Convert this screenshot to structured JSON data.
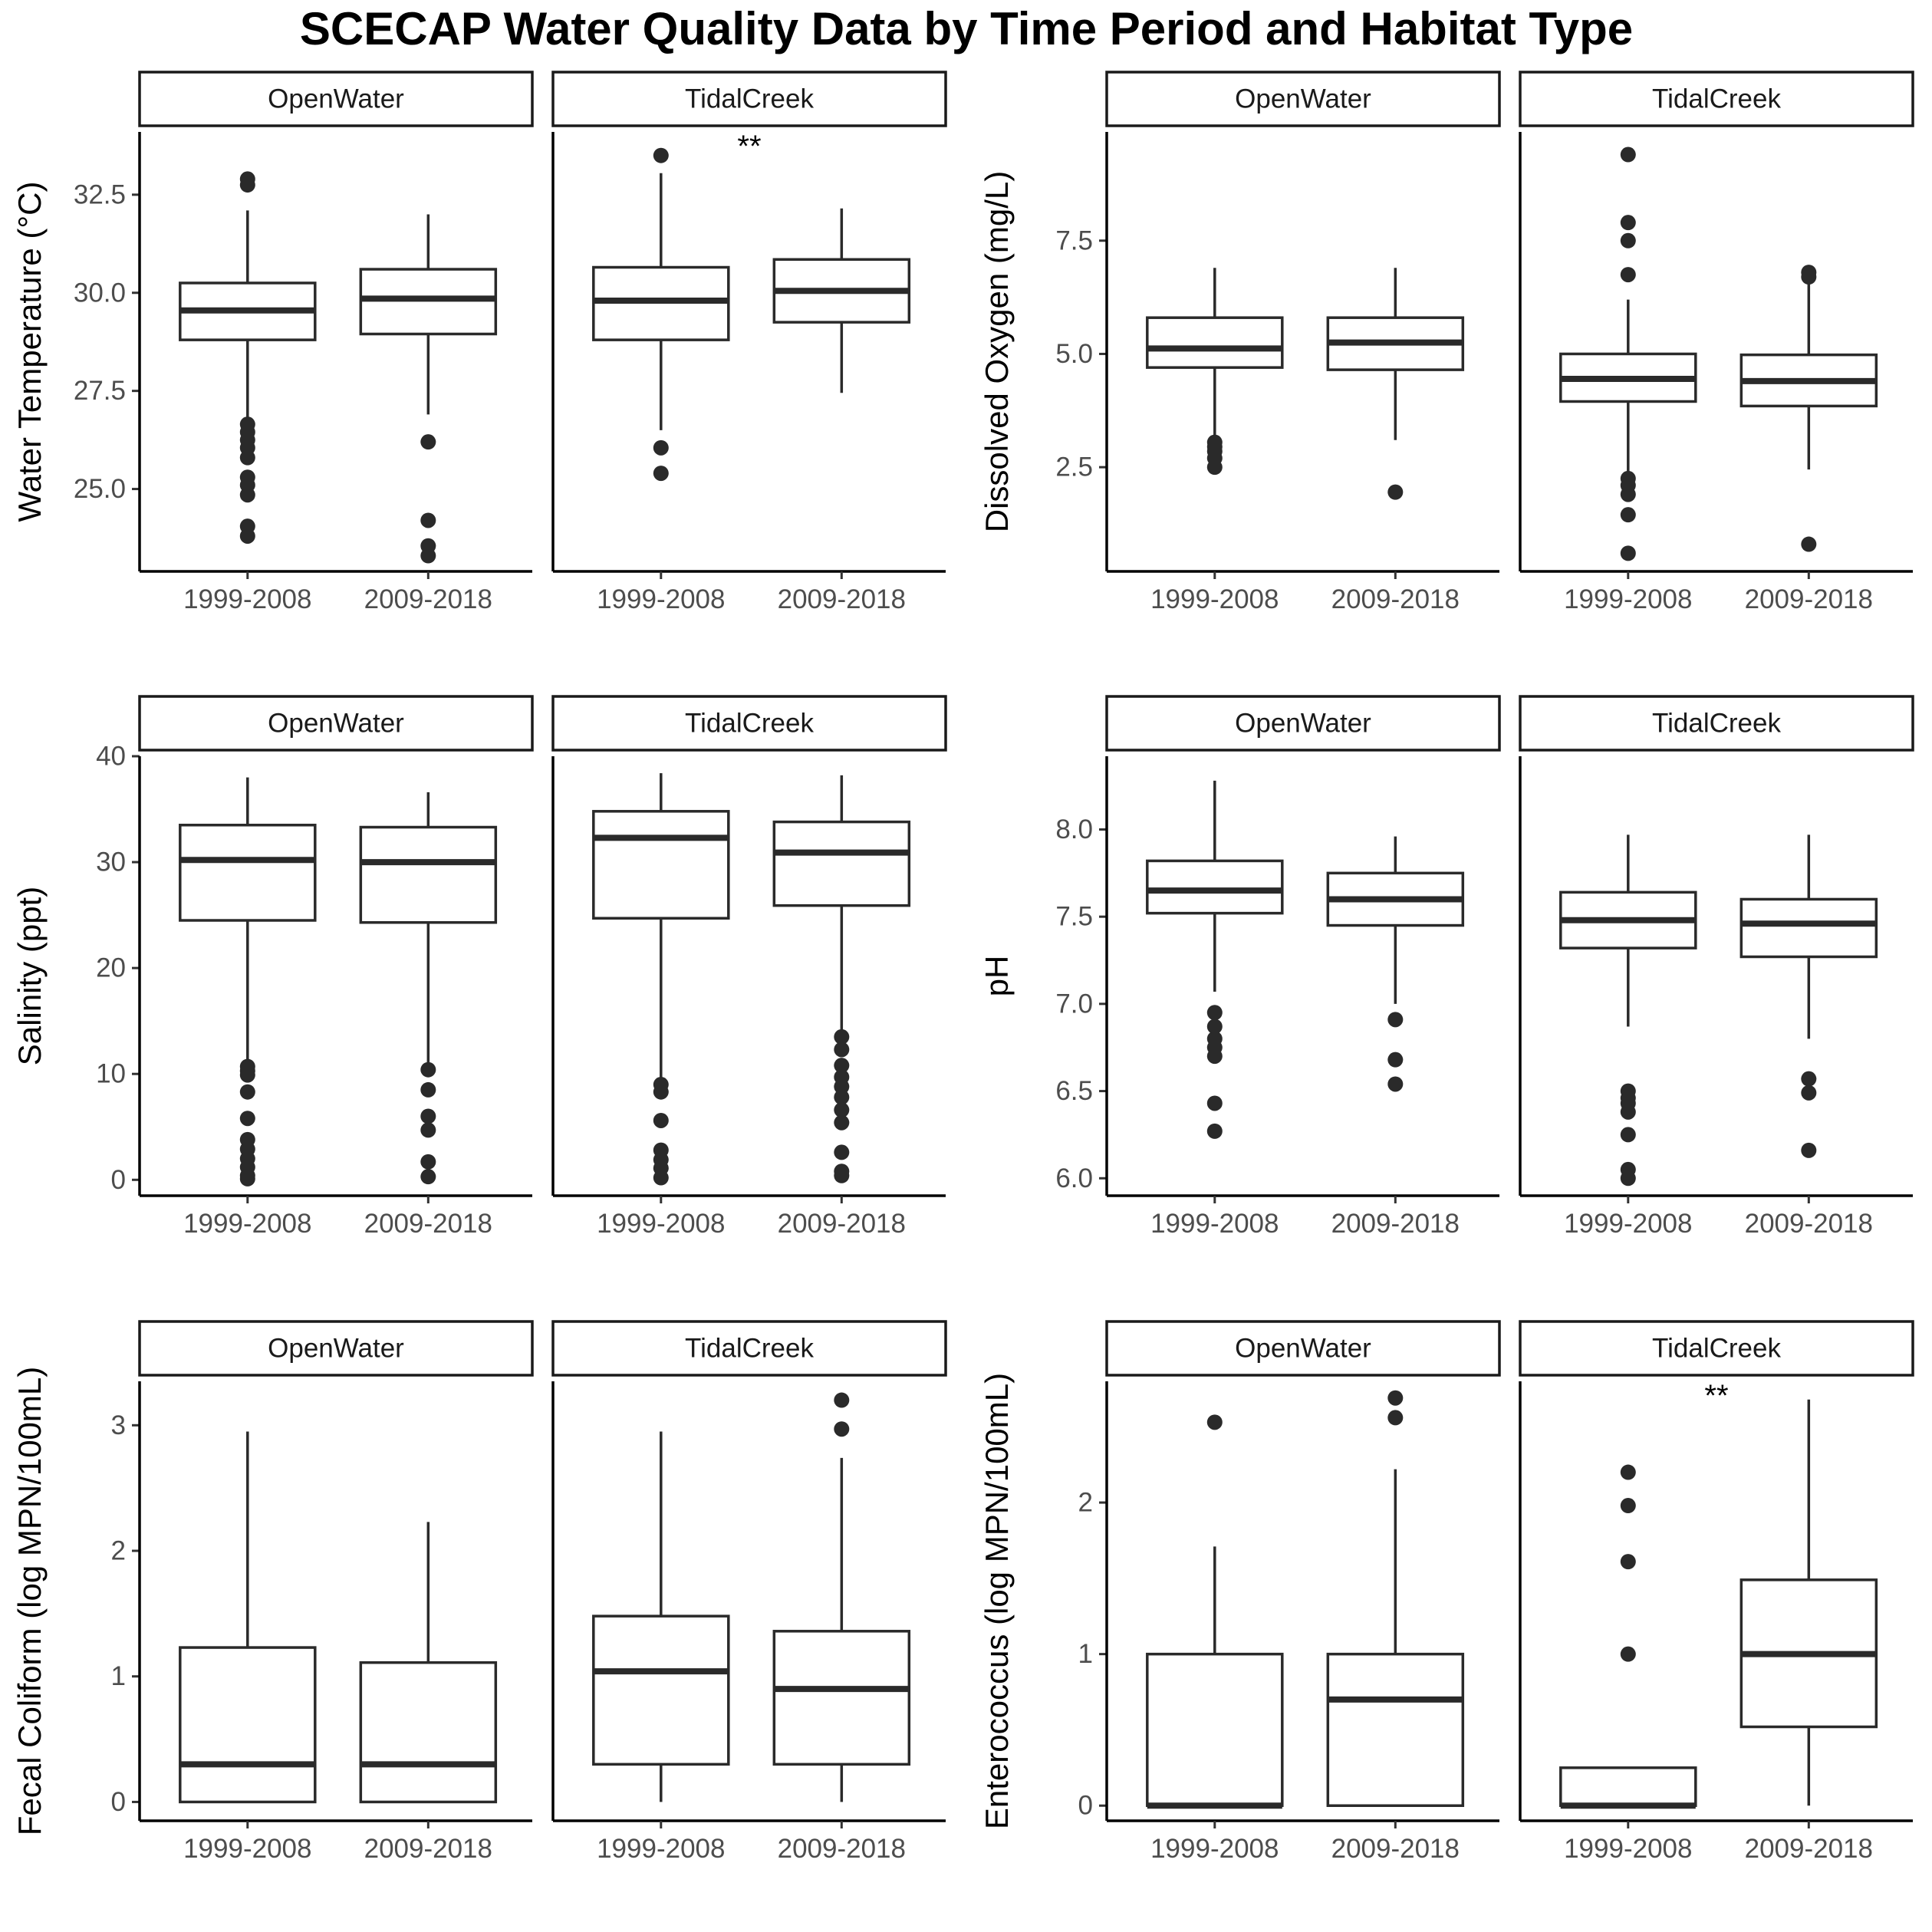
{
  "title": "SCECAP Water Quality Data by Time Period and Habitat Type",
  "chart_data": [
    {
      "type": "boxplot",
      "ylabel": "Water Temperature (°C)",
      "ylim": [
        22.9,
        34.1
      ],
      "yticks": [
        25.0,
        27.5,
        30.0,
        32.5
      ],
      "ytick_labels": [
        "25.0",
        "27.5",
        "30.0",
        "32.5"
      ],
      "categories": [
        "1999-2008",
        "2009-2018"
      ],
      "facets": [
        {
          "name": "OpenWater",
          "annotation": "",
          "boxes": [
            {
              "category": "1999-2008",
              "lower_whisker": 26.8,
              "q1": 28.8,
              "median": 29.55,
              "q3": 30.25,
              "upper_whisker": 32.1,
              "outliers": [
                32.9,
                32.75,
                26.65,
                26.45,
                26.25,
                26.05,
                25.8,
                25.3,
                25.1,
                24.85,
                24.05,
                23.8
              ]
            },
            {
              "category": "2009-2018",
              "lower_whisker": 26.9,
              "q1": 28.95,
              "median": 29.85,
              "q3": 30.6,
              "upper_whisker": 32.0,
              "outliers": [
                26.2,
                24.2,
                23.55,
                23.3
              ]
            }
          ]
        },
        {
          "name": "TidalCreek",
          "annotation": "**",
          "boxes": [
            {
              "category": "1999-2008",
              "lower_whisker": 26.5,
              "q1": 28.8,
              "median": 29.8,
              "q3": 30.65,
              "upper_whisker": 33.05,
              "outliers": [
                33.5,
                26.05,
                25.4
              ]
            },
            {
              "category": "2009-2018",
              "lower_whisker": 27.45,
              "q1": 29.25,
              "median": 30.05,
              "q3": 30.85,
              "upper_whisker": 32.15,
              "outliers": []
            }
          ]
        }
      ]
    },
    {
      "type": "boxplot",
      "ylabel": "Dissolved Oxygen (mg/L)",
      "ylim": [
        0.2,
        9.9
      ],
      "yticks": [
        2.5,
        5.0,
        7.5
      ],
      "ytick_labels": [
        "2.5",
        "5.0",
        "7.5"
      ],
      "categories": [
        "1999-2008",
        "2009-2018"
      ],
      "facets": [
        {
          "name": "OpenWater",
          "annotation": "",
          "boxes": [
            {
              "category": "1999-2008",
              "lower_whisker": 3.2,
              "q1": 4.7,
              "median": 5.12,
              "q3": 5.8,
              "upper_whisker": 6.9,
              "outliers": [
                3.05,
                2.95,
                2.85,
                2.7,
                2.5
              ]
            },
            {
              "category": "2009-2018",
              "lower_whisker": 3.1,
              "q1": 4.65,
              "median": 5.25,
              "q3": 5.8,
              "upper_whisker": 6.9,
              "outliers": [
                1.95
              ]
            }
          ]
        },
        {
          "name": "TidalCreek",
          "annotation": "",
          "boxes": [
            {
              "category": "1999-2008",
              "lower_whisker": 2.4,
              "q1": 3.95,
              "median": 4.45,
              "q3": 5.0,
              "upper_whisker": 6.2,
              "outliers": [
                9.4,
                7.9,
                7.5,
                6.75,
                2.25,
                2.1,
                1.9,
                1.45,
                0.6
              ]
            },
            {
              "category": "2009-2018",
              "lower_whisker": 2.45,
              "q1": 3.85,
              "median": 4.4,
              "q3": 4.98,
              "upper_whisker": 6.55,
              "outliers": [
                6.8,
                6.7,
                0.8
              ]
            }
          ]
        }
      ]
    },
    {
      "type": "boxplot",
      "ylabel": "Salinity (ppt)",
      "ylim": [
        -1.5,
        40.0
      ],
      "yticks": [
        0,
        10,
        20,
        30,
        40
      ],
      "ytick_labels": [
        "0",
        "10",
        "20",
        "30",
        "40"
      ],
      "categories": [
        "1999-2008",
        "2009-2018"
      ],
      "facets": [
        {
          "name": "OpenWater",
          "annotation": "",
          "boxes": [
            {
              "category": "1999-2008",
              "lower_whisker": 11.0,
              "q1": 24.5,
              "median": 30.2,
              "q3": 33.5,
              "upper_whisker": 38.0,
              "outliers": [
                10.7,
                10.3,
                9.9,
                8.3,
                5.8,
                3.8,
                2.9,
                2.0,
                1.2,
                0.4,
                0.1
              ]
            },
            {
              "category": "2009-2018",
              "lower_whisker": 11.0,
              "q1": 24.3,
              "median": 30.0,
              "q3": 33.3,
              "upper_whisker": 36.6,
              "outliers": [
                10.4,
                8.5,
                6.0,
                4.7,
                1.7,
                0.3
              ]
            }
          ]
        },
        {
          "name": "TidalCreek",
          "annotation": "",
          "boxes": [
            {
              "category": "1999-2008",
              "lower_whisker": 9.2,
              "q1": 24.7,
              "median": 32.3,
              "q3": 34.8,
              "upper_whisker": 38.4,
              "outliers": [
                9.0,
                8.3,
                5.6,
                2.8,
                1.9,
                1.1,
                0.2
              ]
            },
            {
              "category": "2009-2018",
              "lower_whisker": 14.0,
              "q1": 25.9,
              "median": 30.9,
              "q3": 33.8,
              "upper_whisker": 38.2,
              "outliers": [
                13.5,
                12.3,
                10.8,
                9.7,
                8.8,
                7.8,
                6.6,
                5.4,
                2.6,
                0.8,
                0.4
              ]
            }
          ]
        }
      ]
    },
    {
      "type": "boxplot",
      "ylabel": "pH",
      "ylim": [
        5.9,
        8.42
      ],
      "yticks": [
        6.0,
        6.5,
        7.0,
        7.5,
        8.0
      ],
      "ytick_labels": [
        "6.0",
        "6.5",
        "7.0",
        "7.5",
        "8.0"
      ],
      "categories": [
        "1999-2008",
        "2009-2018"
      ],
      "facets": [
        {
          "name": "OpenWater",
          "annotation": "",
          "boxes": [
            {
              "category": "1999-2008",
              "lower_whisker": 7.07,
              "q1": 7.52,
              "median": 7.65,
              "q3": 7.82,
              "upper_whisker": 8.28,
              "outliers": [
                6.95,
                6.87,
                6.8,
                6.75,
                6.7,
                6.43,
                6.27
              ]
            },
            {
              "category": "2009-2018",
              "lower_whisker": 7.0,
              "q1": 7.45,
              "median": 7.6,
              "q3": 7.75,
              "upper_whisker": 7.96,
              "outliers": [
                6.91,
                6.68,
                6.54
              ]
            }
          ]
        },
        {
          "name": "TidalCreek",
          "annotation": "",
          "boxes": [
            {
              "category": "1999-2008",
              "lower_whisker": 6.87,
              "q1": 7.32,
              "median": 7.48,
              "q3": 7.64,
              "upper_whisker": 7.97,
              "outliers": [
                6.5,
                6.46,
                6.43,
                6.38,
                6.25,
                6.05,
                6.0
              ]
            },
            {
              "category": "2009-2018",
              "lower_whisker": 6.8,
              "q1": 7.27,
              "median": 7.46,
              "q3": 7.6,
              "upper_whisker": 7.97,
              "outliers": [
                6.57,
                6.49,
                6.16
              ]
            }
          ]
        }
      ]
    },
    {
      "type": "boxplot",
      "ylabel": "Fecal Coliform (log MPN/100mL)",
      "ylim": [
        -0.15,
        3.35
      ],
      "yticks": [
        0,
        1,
        2,
        3
      ],
      "ytick_labels": [
        "0",
        "1",
        "2",
        "3"
      ],
      "categories": [
        "1999-2008",
        "2009-2018"
      ],
      "facets": [
        {
          "name": "OpenWater",
          "annotation": "",
          "boxes": [
            {
              "category": "1999-2008",
              "lower_whisker": 0.0,
              "q1": 0.0,
              "median": 0.3,
              "q3": 1.23,
              "upper_whisker": 2.95,
              "outliers": []
            },
            {
              "category": "2009-2018",
              "lower_whisker": 0.0,
              "q1": 0.0,
              "median": 0.3,
              "q3": 1.11,
              "upper_whisker": 2.23,
              "outliers": []
            }
          ]
        },
        {
          "name": "TidalCreek",
          "annotation": "",
          "boxes": [
            {
              "category": "1999-2008",
              "lower_whisker": 0.0,
              "q1": 0.3,
              "median": 1.04,
              "q3": 1.48,
              "upper_whisker": 2.95,
              "outliers": []
            },
            {
              "category": "2009-2018",
              "lower_whisker": 0.0,
              "q1": 0.3,
              "median": 0.9,
              "q3": 1.36,
              "upper_whisker": 2.74,
              "outliers": [
                3.2,
                2.97
              ]
            }
          ]
        }
      ]
    },
    {
      "type": "boxplot",
      "ylabel": "Enterococcus (log MPN/100mL)",
      "ylim": [
        -0.1,
        2.8
      ],
      "yticks": [
        0,
        1,
        2
      ],
      "ytick_labels": [
        "0",
        "1",
        "2"
      ],
      "categories": [
        "1999-2008",
        "2009-2018"
      ],
      "facets": [
        {
          "name": "OpenWater",
          "annotation": "",
          "boxes": [
            {
              "category": "1999-2008",
              "lower_whisker": 0.0,
              "q1": 0.0,
              "median": 0.0,
              "q3": 1.0,
              "upper_whisker": 1.71,
              "outliers": [
                2.53
              ]
            },
            {
              "category": "2009-2018",
              "lower_whisker": 0.0,
              "q1": 0.0,
              "median": 0.7,
              "q3": 1.0,
              "upper_whisker": 2.22,
              "outliers": [
                2.69,
                2.56
              ]
            }
          ]
        },
        {
          "name": "TidalCreek",
          "annotation": "**",
          "boxes": [
            {
              "category": "1999-2008",
              "lower_whisker": 0.0,
              "q1": 0.0,
              "median": 0.0,
              "q3": 0.25,
              "upper_whisker": 0.25,
              "outliers": [
                2.2,
                1.98,
                1.61,
                1.0
              ]
            },
            {
              "category": "2009-2018",
              "lower_whisker": 0.0,
              "q1": 0.52,
              "median": 1.0,
              "q3": 1.49,
              "upper_whisker": 2.68,
              "outliers": []
            }
          ]
        }
      ]
    }
  ]
}
